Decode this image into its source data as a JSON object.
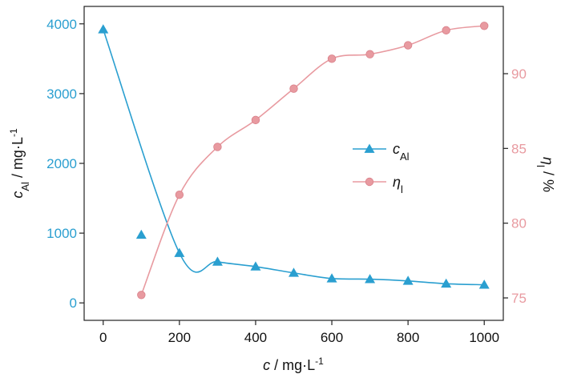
{
  "chart_data": {
    "type": "line",
    "x": [
      0,
      100,
      200,
      300,
      400,
      500,
      600,
      700,
      800,
      900,
      1000
    ],
    "series": [
      {
        "name": "cAl",
        "axis": "left",
        "color": "#2a9fd0",
        "marker": "triangle",
        "points": [
          {
            "x": 0,
            "y": 3920
          },
          {
            "x": 100,
            "y": 975
          },
          {
            "x": 200,
            "y": 715
          },
          {
            "x": 300,
            "y": 590
          },
          {
            "x": 400,
            "y": 520
          },
          {
            "x": 500,
            "y": 430
          },
          {
            "x": 600,
            "y": 350
          },
          {
            "x": 700,
            "y": 340
          },
          {
            "x": 800,
            "y": 315
          },
          {
            "x": 900,
            "y": 275
          },
          {
            "x": 1000,
            "y": 260
          }
        ]
      },
      {
        "name": "ηl",
        "axis": "right",
        "color": "#e89aa0",
        "marker": "circle",
        "points": [
          {
            "x": 100,
            "y": 75.2
          },
          {
            "x": 200,
            "y": 81.9
          },
          {
            "x": 300,
            "y": 85.1
          },
          {
            "x": 400,
            "y": 86.9
          },
          {
            "x": 500,
            "y": 89.0
          },
          {
            "x": 600,
            "y": 91.0
          },
          {
            "x": 700,
            "y": 91.3
          },
          {
            "x": 800,
            "y": 91.9
          },
          {
            "x": 900,
            "y": 92.9
          },
          {
            "x": 1000,
            "y": 93.2
          }
        ]
      }
    ],
    "x_axis": {
      "label_var": "c",
      "label_unit": " / mg·L",
      "label_exp": "-1",
      "ticks": [
        "0",
        "200",
        "400",
        "600",
        "800",
        "1000"
      ],
      "range": [
        -50,
        1050
      ]
    },
    "y_axis_left": {
      "label_var": "c",
      "label_sub": "Al",
      "label_unit": " / mg·L",
      "label_exp": "-1",
      "ticks": [
        "0",
        "1000",
        "2000",
        "3000",
        "4000"
      ],
      "range": [
        -250,
        4250
      ],
      "color": "#2a9fd0"
    },
    "y_axis_right": {
      "label_var": "η",
      "label_sub": "l",
      "label_unit": " / %",
      "ticks": [
        "75",
        "80",
        "85",
        "90"
      ],
      "range": [
        73.5,
        94.5
      ],
      "color": "#e89aa0"
    },
    "legend": {
      "placement": "center-right",
      "items": [
        {
          "var": "c",
          "sub": "Al",
          "marker": "triangle",
          "color": "#2a9fd0"
        },
        {
          "var": "η",
          "sub": "l",
          "marker": "circle",
          "color": "#e89aa0"
        }
      ]
    }
  }
}
